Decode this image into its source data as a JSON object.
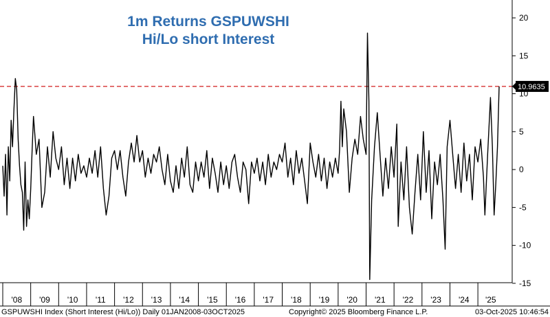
{
  "chart_data": {
    "type": "line",
    "title": "1m Returns GSPUWSHI",
    "subtitle": "Hi/Lo short Interest",
    "ylim": [
      -17,
      21
    ],
    "y_ticks": [
      20,
      15,
      10,
      5,
      0,
      -5,
      -10,
      -15
    ],
    "y_tick_labels": [
      "20",
      "15",
      "10",
      "5",
      "0",
      "-5",
      "-10",
      "-15"
    ],
    "x_tick_labels": [
      "'08",
      "'09",
      "'10",
      "'11",
      "'12",
      "'13",
      "'14",
      "'15",
      "'16",
      "'17",
      "'18",
      "'19",
      "'20",
      "'21",
      "'22",
      "'23",
      "'24",
      "'25"
    ],
    "x_ticks_year": [
      2008,
      2009,
      2010,
      2011,
      2012,
      2013,
      2014,
      2015,
      2016,
      2017,
      2018,
      2019,
      2020,
      2021,
      2022,
      2023,
      2024,
      2025
    ],
    "x_range_year": [
      2008.0,
      2025.76
    ],
    "reference_line": {
      "value": 10.9635,
      "style": "dashed",
      "color": "#cc0000"
    },
    "last_value_label": "10.9635",
    "grid": false,
    "series": [
      {
        "color": "#000000",
        "points": [
          [
            2008.0,
            0.5
          ],
          [
            2008.05,
            -3.5
          ],
          [
            2008.1,
            2.0
          ],
          [
            2008.15,
            -6.0
          ],
          [
            2008.2,
            3.0
          ],
          [
            2008.25,
            -1.5
          ],
          [
            2008.3,
            6.5
          ],
          [
            2008.35,
            3.0
          ],
          [
            2008.4,
            8.0
          ],
          [
            2008.45,
            12.0
          ],
          [
            2008.5,
            10.5
          ],
          [
            2008.55,
            4.0
          ],
          [
            2008.6,
            0.5
          ],
          [
            2008.65,
            -2.0
          ],
          [
            2008.7,
            -3.0
          ],
          [
            2008.75,
            -8.0
          ],
          [
            2008.8,
            1.0
          ],
          [
            2008.85,
            -7.5
          ],
          [
            2008.9,
            -4.0
          ],
          [
            2008.95,
            -6.5
          ],
          [
            2009.0,
            -2.5
          ],
          [
            2009.05,
            2.5
          ],
          [
            2009.1,
            7.0
          ],
          [
            2009.15,
            4.5
          ],
          [
            2009.2,
            2.0
          ],
          [
            2009.3,
            4.0
          ],
          [
            2009.4,
            -5.0
          ],
          [
            2009.5,
            -3.0
          ],
          [
            2009.6,
            3.0
          ],
          [
            2009.7,
            -1.0
          ],
          [
            2009.8,
            5.0
          ],
          [
            2009.9,
            1.5
          ],
          [
            2010.0,
            0.0
          ],
          [
            2010.1,
            3.0
          ],
          [
            2010.2,
            -2.0
          ],
          [
            2010.3,
            1.5
          ],
          [
            2010.4,
            -2.5
          ],
          [
            2010.5,
            1.5
          ],
          [
            2010.6,
            -1.5
          ],
          [
            2010.7,
            2.0
          ],
          [
            2010.8,
            -0.5
          ],
          [
            2010.9,
            0.5
          ],
          [
            2011.0,
            -1.0
          ],
          [
            2011.1,
            1.5
          ],
          [
            2011.2,
            -0.5
          ],
          [
            2011.3,
            2.5
          ],
          [
            2011.4,
            -1.0
          ],
          [
            2011.5,
            3.0
          ],
          [
            2011.6,
            -2.5
          ],
          [
            2011.7,
            -6.0
          ],
          [
            2011.8,
            -3.5
          ],
          [
            2011.9,
            1.5
          ],
          [
            2012.0,
            2.5
          ],
          [
            2012.1,
            0.0
          ],
          [
            2012.2,
            2.5
          ],
          [
            2012.3,
            -1.0
          ],
          [
            2012.4,
            -3.5
          ],
          [
            2012.5,
            1.0
          ],
          [
            2012.6,
            3.5
          ],
          [
            2012.7,
            1.0
          ],
          [
            2012.8,
            4.5
          ],
          [
            2012.9,
            1.0
          ],
          [
            2013.0,
            2.5
          ],
          [
            2013.1,
            -1.0
          ],
          [
            2013.2,
            1.5
          ],
          [
            2013.3,
            -0.5
          ],
          [
            2013.4,
            2.0
          ],
          [
            2013.5,
            1.0
          ],
          [
            2013.6,
            3.0
          ],
          [
            2013.7,
            0.0
          ],
          [
            2013.8,
            -2.0
          ],
          [
            2013.9,
            2.0
          ],
          [
            2014.0,
            -1.5
          ],
          [
            2014.1,
            -3.0
          ],
          [
            2014.2,
            0.5
          ],
          [
            2014.3,
            -2.5
          ],
          [
            2014.4,
            1.5
          ],
          [
            2014.5,
            -1.0
          ],
          [
            2014.6,
            3.0
          ],
          [
            2014.7,
            -2.0
          ],
          [
            2014.8,
            -3.0
          ],
          [
            2014.9,
            1.0
          ],
          [
            2015.0,
            -1.5
          ],
          [
            2015.1,
            1.0
          ],
          [
            2015.2,
            -1.0
          ],
          [
            2015.3,
            2.5
          ],
          [
            2015.4,
            -2.5
          ],
          [
            2015.5,
            1.5
          ],
          [
            2015.6,
            -0.5
          ],
          [
            2015.7,
            -3.0
          ],
          [
            2015.8,
            1.0
          ],
          [
            2015.9,
            -2.0
          ],
          [
            2016.0,
            0.5
          ],
          [
            2016.1,
            -2.5
          ],
          [
            2016.2,
            1.0
          ],
          [
            2016.3,
            2.0
          ],
          [
            2016.4,
            -1.0
          ],
          [
            2016.5,
            -3.0
          ],
          [
            2016.6,
            1.0
          ],
          [
            2016.7,
            0.0
          ],
          [
            2016.8,
            -4.5
          ],
          [
            2016.9,
            1.0
          ],
          [
            2017.0,
            -0.5
          ],
          [
            2017.1,
            1.5
          ],
          [
            2017.2,
            -1.5
          ],
          [
            2017.3,
            1.0
          ],
          [
            2017.4,
            -2.0
          ],
          [
            2017.5,
            2.0
          ],
          [
            2017.6,
            -1.0
          ],
          [
            2017.7,
            1.0
          ],
          [
            2017.8,
            0.0
          ],
          [
            2017.9,
            2.0
          ],
          [
            2018.0,
            1.0
          ],
          [
            2018.1,
            3.5
          ],
          [
            2018.2,
            -1.0
          ],
          [
            2018.3,
            1.5
          ],
          [
            2018.4,
            -2.0
          ],
          [
            2018.5,
            2.5
          ],
          [
            2018.6,
            -0.5
          ],
          [
            2018.7,
            1.5
          ],
          [
            2018.8,
            -1.5
          ],
          [
            2018.9,
            -4.5
          ],
          [
            2019.0,
            3.5
          ],
          [
            2019.1,
            1.0
          ],
          [
            2019.2,
            -1.0
          ],
          [
            2019.3,
            2.0
          ],
          [
            2019.4,
            -1.5
          ],
          [
            2019.5,
            1.5
          ],
          [
            2019.6,
            -2.5
          ],
          [
            2019.7,
            1.0
          ],
          [
            2019.8,
            -1.0
          ],
          [
            2019.9,
            1.5
          ],
          [
            2020.0,
            -0.5
          ],
          [
            2020.05,
            2.5
          ],
          [
            2020.1,
            9.0
          ],
          [
            2020.15,
            3.0
          ],
          [
            2020.2,
            8.0
          ],
          [
            2020.3,
            5.0
          ],
          [
            2020.4,
            -3.0
          ],
          [
            2020.5,
            1.5
          ],
          [
            2020.6,
            4.0
          ],
          [
            2020.7,
            2.0
          ],
          [
            2020.8,
            7.0
          ],
          [
            2020.9,
            4.0
          ],
          [
            2021.0,
            2.0
          ],
          [
            2021.05,
            18.0
          ],
          [
            2021.1,
            9.0
          ],
          [
            2021.13,
            -14.5
          ],
          [
            2021.2,
            -4.0
          ],
          [
            2021.3,
            3.0
          ],
          [
            2021.4,
            7.5
          ],
          [
            2021.5,
            2.0
          ],
          [
            2021.6,
            -3.5
          ],
          [
            2021.7,
            1.5
          ],
          [
            2021.8,
            -2.5
          ],
          [
            2021.9,
            3.0
          ],
          [
            2022.0,
            -1.0
          ],
          [
            2022.1,
            6.0
          ],
          [
            2022.15,
            -7.5
          ],
          [
            2022.25,
            1.0
          ],
          [
            2022.35,
            -4.0
          ],
          [
            2022.45,
            3.0
          ],
          [
            2022.55,
            -5.0
          ],
          [
            2022.65,
            -8.5
          ],
          [
            2022.75,
            -3.0
          ],
          [
            2022.85,
            2.0
          ],
          [
            2022.95,
            -4.0
          ],
          [
            2023.05,
            5.0
          ],
          [
            2023.15,
            -3.0
          ],
          [
            2023.25,
            2.5
          ],
          [
            2023.35,
            -6.5
          ],
          [
            2023.45,
            1.0
          ],
          [
            2023.55,
            -2.0
          ],
          [
            2023.65,
            2.0
          ],
          [
            2023.75,
            -4.0
          ],
          [
            2023.83,
            -10.5
          ],
          [
            2023.9,
            3.0
          ],
          [
            2024.0,
            6.5
          ],
          [
            2024.1,
            2.0
          ],
          [
            2024.2,
            -2.5
          ],
          [
            2024.3,
            2.0
          ],
          [
            2024.4,
            -3.0
          ],
          [
            2024.5,
            3.5
          ],
          [
            2024.6,
            -1.5
          ],
          [
            2024.7,
            2.0
          ],
          [
            2024.8,
            -4.0
          ],
          [
            2024.9,
            3.0
          ],
          [
            2025.0,
            1.0
          ],
          [
            2025.1,
            4.0
          ],
          [
            2025.2,
            -1.0
          ],
          [
            2025.25,
            -6.0
          ],
          [
            2025.35,
            2.0
          ],
          [
            2025.45,
            9.5
          ],
          [
            2025.52,
            3.0
          ],
          [
            2025.58,
            -6.0
          ],
          [
            2025.64,
            -2.0
          ],
          [
            2025.7,
            3.0
          ],
          [
            2025.76,
            10.96
          ]
        ]
      }
    ]
  },
  "footer": {
    "left": "GSPUWSHI Index (Short Interest (Hi/Lo)) Daily 01JAN2008-03OCT2025",
    "center": "Copyright© 2025 Bloomberg Finance L.P.",
    "right": "03-Oct-2025 10:46:54"
  }
}
